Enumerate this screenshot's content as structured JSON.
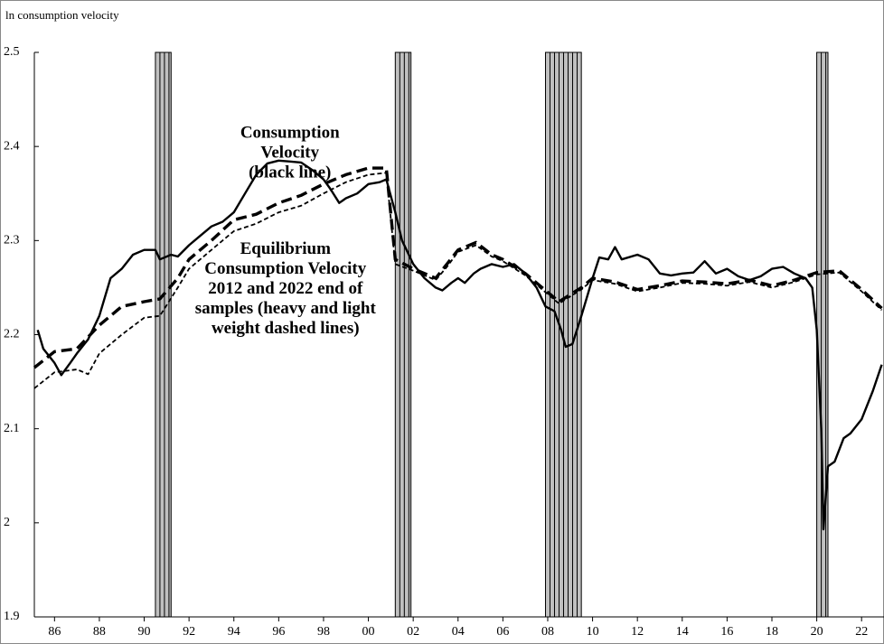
{
  "chart_data": {
    "type": "line",
    "y_axis_label": "ln consumption velocity",
    "ylim": [
      1.9,
      2.5
    ],
    "yticks": [
      1.9,
      2,
      2.1,
      2.2,
      2.3,
      2.4,
      2.5
    ],
    "xlim": [
      1985.1,
      2023.0
    ],
    "xticks": [
      {
        "value": 1986,
        "label": "86"
      },
      {
        "value": 1988,
        "label": "88"
      },
      {
        "value": 1990,
        "label": "90"
      },
      {
        "value": 1992,
        "label": "92"
      },
      {
        "value": 1994,
        "label": "94"
      },
      {
        "value": 1996,
        "label": "96"
      },
      {
        "value": 1998,
        "label": "98"
      },
      {
        "value": 2000,
        "label": "00"
      },
      {
        "value": 2002,
        "label": "02"
      },
      {
        "value": 2004,
        "label": "04"
      },
      {
        "value": 2006,
        "label": "06"
      },
      {
        "value": 2008,
        "label": "08"
      },
      {
        "value": 2010,
        "label": "10"
      },
      {
        "value": 2012,
        "label": "12"
      },
      {
        "value": 2014,
        "label": "14"
      },
      {
        "value": 2016,
        "label": "16"
      },
      {
        "value": 2018,
        "label": "18"
      },
      {
        "value": 2020,
        "label": "20"
      },
      {
        "value": 2022,
        "label": "22"
      }
    ],
    "shaded_periods": [
      [
        1990.5,
        1991.2
      ],
      [
        2001.2,
        2001.9
      ],
      [
        2007.9,
        2009.5
      ],
      [
        2020.0,
        2020.5
      ]
    ],
    "shade_color": "#c0c0c0",
    "annotations": [
      {
        "lines": [
          "Consumption",
          "Velocity",
          "(black line)"
        ],
        "x": 1996.5,
        "y": 2.413
      },
      {
        "lines": [
          "Equilibrium",
          "Consumption Velocity",
          "2012 and 2022 end of",
          "samples (heavy and light",
          "weight dashed lines)"
        ],
        "x": 1996.3,
        "y": 2.29
      }
    ],
    "series": [
      {
        "color": "#000000",
        "line_style": "solid",
        "x": [
          1985.25,
          1985.5,
          1986,
          1986.3,
          1986.7,
          1987,
          1987.5,
          1988,
          1988.5,
          1989,
          1989.5,
          1990,
          1990.5,
          1990.7,
          1991.2,
          1991.5,
          1992,
          1992.5,
          1993,
          1993.5,
          1994,
          1994.5,
          1995,
          1995.5,
          1996,
          1996.5,
          1997,
          1997.5,
          1998,
          1998.3,
          1998.7,
          1999,
          1999.5,
          2000,
          2000.5,
          2000.8,
          2001.2,
          2001.5,
          2002,
          2002.5,
          2003,
          2003.3,
          2003.7,
          2004,
          2004.3,
          2004.7,
          2005,
          2005.5,
          2006,
          2006.5,
          2007,
          2007.5,
          2007.9,
          2008.3,
          2008.6,
          2008.8,
          2009.1,
          2009.5,
          2010,
          2010.3,
          2010.7,
          2011,
          2011.3,
          2012,
          2012.5,
          2013,
          2013.5,
          2014,
          2014.5,
          2015,
          2015.5,
          2016,
          2016.5,
          2017,
          2017.5,
          2018,
          2018.5,
          2019,
          2019.5,
          2019.8,
          2020,
          2020.2,
          2020.3,
          2020.5,
          2020.8,
          2021.2,
          2021.5,
          2022,
          2022.5,
          2022.9
        ],
        "values": [
          2.205,
          2.185,
          2.17,
          2.157,
          2.17,
          2.18,
          2.195,
          2.22,
          2.26,
          2.27,
          2.285,
          2.29,
          2.29,
          2.28,
          2.285,
          2.283,
          2.295,
          2.305,
          2.315,
          2.32,
          2.33,
          2.35,
          2.37,
          2.382,
          2.385,
          2.384,
          2.383,
          2.375,
          2.365,
          2.355,
          2.34,
          2.345,
          2.35,
          2.36,
          2.362,
          2.365,
          2.33,
          2.3,
          2.275,
          2.26,
          2.25,
          2.247,
          2.255,
          2.26,
          2.255,
          2.265,
          2.27,
          2.275,
          2.272,
          2.275,
          2.265,
          2.25,
          2.23,
          2.225,
          2.205,
          2.187,
          2.19,
          2.22,
          2.26,
          2.282,
          2.28,
          2.293,
          2.28,
          2.285,
          2.28,
          2.265,
          2.263,
          2.265,
          2.266,
          2.278,
          2.265,
          2.27,
          2.262,
          2.258,
          2.262,
          2.27,
          2.272,
          2.265,
          2.26,
          2.25,
          2.205,
          2.1,
          1.993,
          2.06,
          2.065,
          2.09,
          2.095,
          2.11,
          2.14,
          2.168
        ]
      },
      {
        "color": "#000000",
        "line_style": "heavy-dashed",
        "x": [
          1985.1,
          1986,
          1987,
          1988,
          1989,
          1990,
          1990.7,
          1991.5,
          1992,
          1993,
          1994,
          1995,
          1996,
          1997,
          1998,
          1999,
          2000,
          2000.8,
          2001.2,
          2002,
          2003,
          2003.5,
          2004,
          2004.8,
          2005.5,
          2006,
          2007,
          2008,
          2008.5,
          2009.5,
          2010,
          2011,
          2012,
          2013,
          2014,
          2015,
          2016,
          2017,
          2018,
          2019,
          2020,
          2021,
          2022,
          2022.9
        ],
        "values": [
          2.165,
          2.182,
          2.185,
          2.21,
          2.23,
          2.235,
          2.238,
          2.26,
          2.28,
          2.3,
          2.322,
          2.328,
          2.34,
          2.348,
          2.36,
          2.37,
          2.377,
          2.377,
          2.28,
          2.27,
          2.26,
          2.275,
          2.29,
          2.298,
          2.285,
          2.28,
          2.265,
          2.245,
          2.235,
          2.25,
          2.26,
          2.256,
          2.248,
          2.252,
          2.257,
          2.256,
          2.254,
          2.258,
          2.252,
          2.258,
          2.266,
          2.268,
          2.248,
          2.228
        ]
      },
      {
        "color": "#000000",
        "line_style": "light-dashed",
        "x": [
          1985.1,
          1986,
          1987,
          1987.5,
          1988,
          1989,
          1990,
          1990.7,
          1991.5,
          1992,
          1993,
          1994,
          1995,
          1996,
          1997,
          1998,
          1999,
          2000,
          2000.8,
          2001.2,
          2002,
          2003,
          2003.5,
          2004,
          2004.8,
          2005.5,
          2006,
          2007,
          2008,
          2008.5,
          2009.5,
          2010,
          2011,
          2012,
          2013,
          2014,
          2015,
          2016,
          2017,
          2018,
          2019,
          2020,
          2021,
          2022,
          2022.9
        ],
        "values": [
          2.143,
          2.16,
          2.163,
          2.158,
          2.18,
          2.2,
          2.218,
          2.22,
          2.25,
          2.27,
          2.29,
          2.31,
          2.318,
          2.33,
          2.337,
          2.35,
          2.362,
          2.37,
          2.372,
          2.275,
          2.268,
          2.258,
          2.272,
          2.288,
          2.295,
          2.283,
          2.278,
          2.263,
          2.243,
          2.233,
          2.248,
          2.258,
          2.254,
          2.246,
          2.25,
          2.255,
          2.254,
          2.252,
          2.256,
          2.25,
          2.256,
          2.264,
          2.266,
          2.246,
          2.226
        ]
      }
    ]
  }
}
